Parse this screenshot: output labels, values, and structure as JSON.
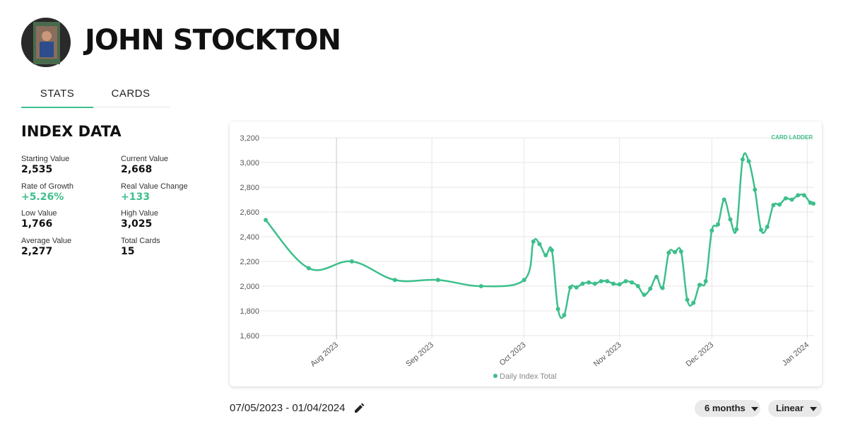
{
  "header": {
    "name": "JOHN STOCKTON"
  },
  "tabs": [
    "STATS",
    "CARDS"
  ],
  "index_data": {
    "title": "INDEX DATA",
    "stats": [
      {
        "label": "Starting Value",
        "value": "2,535"
      },
      {
        "label": "Current Value",
        "value": "2,668"
      },
      {
        "label": "Rate of Growth",
        "value": "+5.26%"
      },
      {
        "label": "Real Value Change",
        "value": "+133"
      },
      {
        "label": "Low Value",
        "value": "1,766"
      },
      {
        "label": "High Value",
        "value": "3,025"
      },
      {
        "label": "Average Value",
        "value": "2,277"
      },
      {
        "label": "Total Cards",
        "value": "15"
      }
    ]
  },
  "chart_data": {
    "type": "line",
    "logo": "CARD LADDER",
    "x": [
      "2023-07-09",
      "2023-07-23",
      "2023-08-06",
      "2023-08-20",
      "2023-09-03",
      "2023-09-17",
      "2023-10-01",
      "2023-10-04",
      "2023-10-06",
      "2023-10-08",
      "2023-10-10",
      "2023-10-12",
      "2023-10-14",
      "2023-10-16",
      "2023-10-18",
      "2023-10-20",
      "2023-10-22",
      "2023-10-24",
      "2023-10-26",
      "2023-10-28",
      "2023-10-30",
      "2023-11-01",
      "2023-11-03",
      "2023-11-05",
      "2023-11-07",
      "2023-11-09",
      "2023-11-11",
      "2023-11-13",
      "2023-11-15",
      "2023-11-17",
      "2023-11-19",
      "2023-11-21",
      "2023-11-23",
      "2023-11-25",
      "2023-11-27",
      "2023-11-29",
      "2023-12-01",
      "2023-12-03",
      "2023-12-05",
      "2023-12-07",
      "2023-12-09",
      "2023-12-11",
      "2023-12-13",
      "2023-12-15",
      "2023-12-17",
      "2023-12-19",
      "2023-12-21",
      "2023-12-23",
      "2023-12-25",
      "2023-12-27",
      "2023-12-29",
      "2023-12-31",
      "2024-01-02",
      "2024-01-03"
    ],
    "series": [
      {
        "name": "Daily Index Total",
        "color": "#3dbf8b",
        "values": [
          2535,
          2145,
          2200,
          2050,
          2050,
          2000,
          2050,
          2360,
          2340,
          2250,
          2290,
          1815,
          1766,
          1990,
          1990,
          2020,
          2030,
          2020,
          2040,
          2040,
          2020,
          2015,
          2040,
          2030,
          2000,
          1930,
          1980,
          2075,
          1985,
          2270,
          2275,
          2280,
          1890,
          1865,
          2010,
          2040,
          2450,
          2500,
          2700,
          2540,
          2460,
          3025,
          3010,
          2780,
          2455,
          2480,
          2655,
          2660,
          2710,
          2700,
          2735,
          2735,
          2675,
          2668
        ]
      }
    ],
    "xlim": [
      "2023-07-09",
      "2024-01-03"
    ],
    "xticks": [
      {
        "value": "2023-08-01",
        "label": "Aug 2023"
      },
      {
        "value": "2023-09-01",
        "label": "Sep 2023"
      },
      {
        "value": "2023-10-01",
        "label": "Oct 2023"
      },
      {
        "value": "2023-11-01",
        "label": "Nov 2023"
      },
      {
        "value": "2023-12-01",
        "label": "Dec 2023"
      },
      {
        "value": "2024-01-01",
        "label": "Jan 2024"
      }
    ],
    "ylim": [
      1600,
      3200
    ],
    "yticks": [
      {
        "value": 1600,
        "label": "1,600"
      },
      {
        "value": 1800,
        "label": "1,800"
      },
      {
        "value": 2000,
        "label": "2,000"
      },
      {
        "value": 2200,
        "label": "2,200"
      },
      {
        "value": 2400,
        "label": "2,400"
      },
      {
        "value": 2600,
        "label": "2,600"
      },
      {
        "value": 2800,
        "label": "2,800"
      },
      {
        "value": 3000,
        "label": "3,000"
      },
      {
        "value": 3200,
        "label": "3,200"
      }
    ],
    "grid": true,
    "legend": "bottom"
  },
  "date_range": "07/05/2023 - 01/04/2024",
  "controls": [
    "6 months",
    "Linear"
  ]
}
